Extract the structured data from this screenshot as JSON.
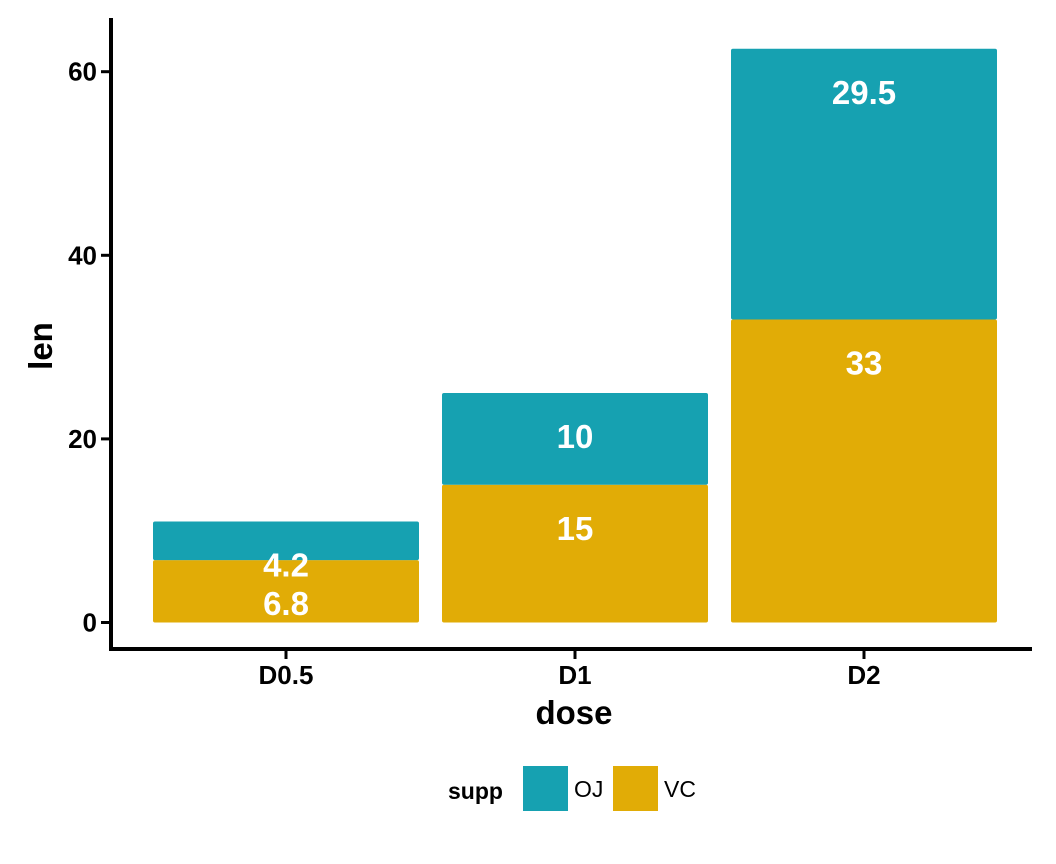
{
  "chart_data": {
    "type": "bar",
    "stacked": true,
    "categories": [
      "D0.5",
      "D1",
      "D2"
    ],
    "series": [
      {
        "name": "VC",
        "values": [
          6.8,
          15,
          33
        ],
        "color": "#E1AC06"
      },
      {
        "name": "OJ",
        "values": [
          4.2,
          10,
          29.5
        ],
        "color": "#16A1B1"
      }
    ],
    "data_labels": {
      "VC": [
        "6.8",
        "15",
        "33"
      ],
      "OJ": [
        "4.2",
        "10",
        "29.5"
      ]
    },
    "xlabel": "dose",
    "ylabel": "len",
    "ylim": [
      0,
      63
    ],
    "yticks": [
      0,
      20,
      40,
      60
    ],
    "grid": false,
    "legend": {
      "title": "supp",
      "position": "bottom",
      "entries": [
        {
          "label": "OJ",
          "color": "#16A1B1"
        },
        {
          "label": "VC",
          "color": "#E1AC06"
        }
      ]
    }
  }
}
